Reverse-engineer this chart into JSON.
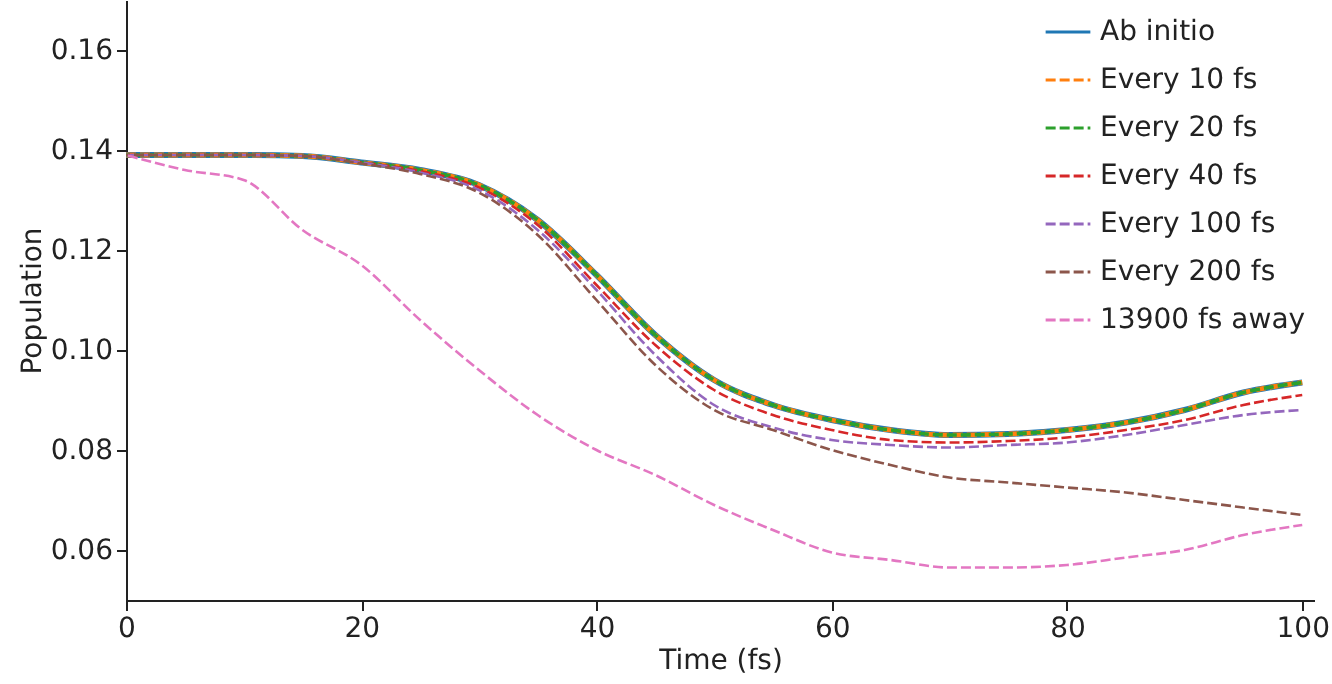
{
  "chart_data": {
    "type": "line",
    "xlabel": "Time (fs)",
    "ylabel": "Population",
    "x": [
      0,
      5,
      10,
      15,
      20,
      25,
      30,
      35,
      40,
      45,
      50,
      55,
      60,
      65,
      70,
      75,
      80,
      85,
      90,
      95,
      100
    ],
    "xlim": [
      0,
      101
    ],
    "xticks": [
      0,
      20,
      40,
      60,
      80,
      100
    ],
    "ylim": [
      0.05,
      0.17
    ],
    "yticks": [
      0.06,
      0.08,
      {
        "value": 0.1,
        "label": "0.10"
      },
      0.12,
      0.14,
      0.16
    ],
    "grid": false,
    "legend": "top right",
    "marker": "none",
    "series": [
      {
        "name": "Ab initio",
        "color": "#1f77b4",
        "line_style": "solid",
        "values": [
          0.139,
          0.139,
          0.139,
          0.1388,
          0.1375,
          0.136,
          0.133,
          0.126,
          0.115,
          0.103,
          0.094,
          0.089,
          0.086,
          0.084,
          0.083,
          0.0832,
          0.084,
          0.0855,
          0.088,
          0.0915,
          0.0935
        ]
      },
      {
        "name": "Every 10 fs",
        "color": "#ff7f0e",
        "line_style": "dashed",
        "values": [
          0.139,
          0.139,
          0.139,
          0.1388,
          0.1375,
          0.136,
          0.133,
          0.126,
          0.115,
          0.103,
          0.094,
          0.089,
          0.086,
          0.084,
          0.083,
          0.0832,
          0.084,
          0.0855,
          0.088,
          0.0915,
          0.0935
        ]
      },
      {
        "name": "Every 20 fs",
        "color": "#2ca02c",
        "line_style": "dashed",
        "values": [
          0.139,
          0.139,
          0.139,
          0.1388,
          0.1375,
          0.136,
          0.133,
          0.126,
          0.115,
          0.103,
          0.094,
          0.089,
          0.086,
          0.084,
          0.083,
          0.0832,
          0.084,
          0.0855,
          0.088,
          0.0915,
          0.0935
        ]
      },
      {
        "name": "Every 40 fs",
        "color": "#d62728",
        "line_style": "dashed",
        "values": [
          0.139,
          0.139,
          0.139,
          0.1388,
          0.1375,
          0.1358,
          0.1325,
          0.125,
          0.113,
          0.101,
          0.092,
          0.087,
          0.084,
          0.082,
          0.0815,
          0.0818,
          0.0825,
          0.084,
          0.086,
          0.089,
          0.091
        ]
      },
      {
        "name": "Every 100 fs",
        "color": "#9467bd",
        "line_style": "dashed",
        "values": [
          0.139,
          0.139,
          0.139,
          0.1388,
          0.1375,
          0.1355,
          0.132,
          0.124,
          0.112,
          0.099,
          0.089,
          0.0845,
          0.082,
          0.081,
          0.0805,
          0.081,
          0.0815,
          0.083,
          0.085,
          0.087,
          0.088
        ]
      },
      {
        "name": "Every 200 fs",
        "color": "#8c564b",
        "line_style": "dashed",
        "values": [
          0.139,
          0.139,
          0.139,
          0.1388,
          0.1373,
          0.1352,
          0.1315,
          0.123,
          0.11,
          0.097,
          0.088,
          0.084,
          0.08,
          0.077,
          0.0745,
          0.0735,
          0.0725,
          0.0715,
          0.07,
          0.0685,
          0.067
        ]
      },
      {
        "name": "13900 fs away",
        "color": "#e377c2",
        "line_style": "dashed",
        "values": [
          0.139,
          0.136,
          0.134,
          0.124,
          0.117,
          0.106,
          0.096,
          0.087,
          0.08,
          0.075,
          0.069,
          0.064,
          0.0595,
          0.058,
          0.0565,
          0.0565,
          0.057,
          0.0585,
          0.06,
          0.063,
          0.065
        ]
      }
    ]
  }
}
